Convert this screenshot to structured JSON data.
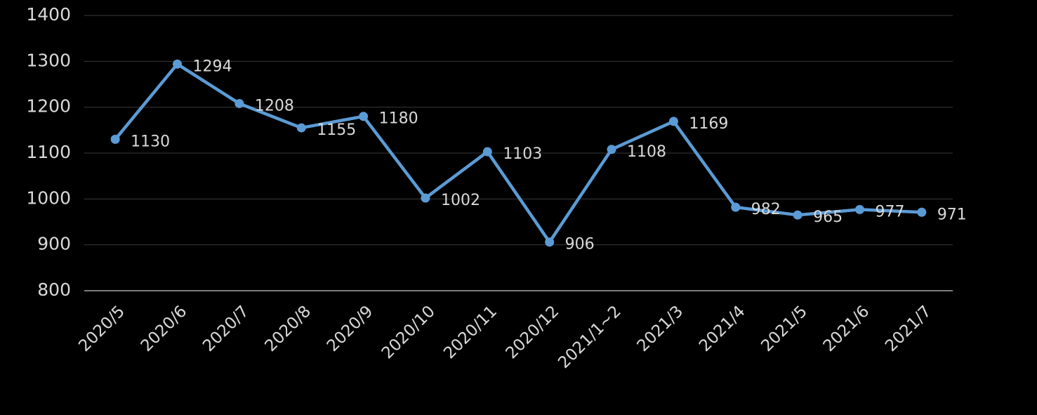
{
  "chart_data": {
    "type": "line",
    "categories": [
      "2020/5",
      "2020/6",
      "2020/7",
      "2020/8",
      "2020/9",
      "2020/10",
      "2020/11",
      "2020/12",
      "2021/1~2",
      "2021/3",
      "2021/4",
      "2021/5",
      "2021/6",
      "2021/7"
    ],
    "values": [
      1130,
      1294,
      1208,
      1155,
      1180,
      1002,
      1103,
      906,
      1108,
      1169,
      982,
      965,
      977,
      971
    ],
    "color": "#5b9bd5",
    "ylim": [
      800,
      1400
    ],
    "yticks": [
      800,
      900,
      1000,
      1100,
      1200,
      1300,
      1400
    ],
    "grid": true
  }
}
